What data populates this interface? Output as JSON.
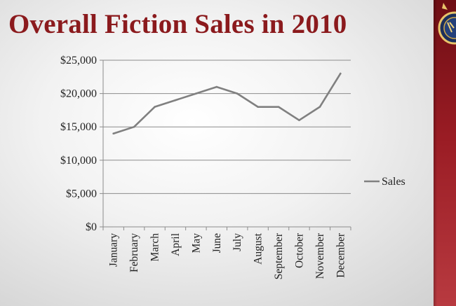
{
  "slide": {
    "title": "Overall Fiction Sales in 2010"
  },
  "colors": {
    "title": "#8b1a1d",
    "line": "#808080",
    "gridline": "#8c8c8c",
    "side_band": "#9a1c24"
  },
  "icons": {
    "crest": "crest-emblem-icon"
  },
  "chart_data": {
    "type": "line",
    "title": "",
    "xlabel": "",
    "ylabel": "",
    "categories": [
      "January",
      "February",
      "March",
      "April",
      "May",
      "June",
      "July",
      "August",
      "September",
      "October",
      "November",
      "December"
    ],
    "series": [
      {
        "name": "Sales",
        "values": [
          14000,
          15000,
          18000,
          19000,
          20000,
          21000,
          20000,
          18000,
          18000,
          16000,
          18000,
          23000
        ]
      }
    ],
    "ylim": [
      0,
      25000
    ],
    "yticks": [
      0,
      5000,
      10000,
      15000,
      20000,
      25000
    ],
    "ytick_labels": [
      "$0",
      "$5,000",
      "$10,000",
      "$15,000",
      "$20,000",
      "$25,000"
    ],
    "grid": true,
    "legend_position": "right"
  }
}
